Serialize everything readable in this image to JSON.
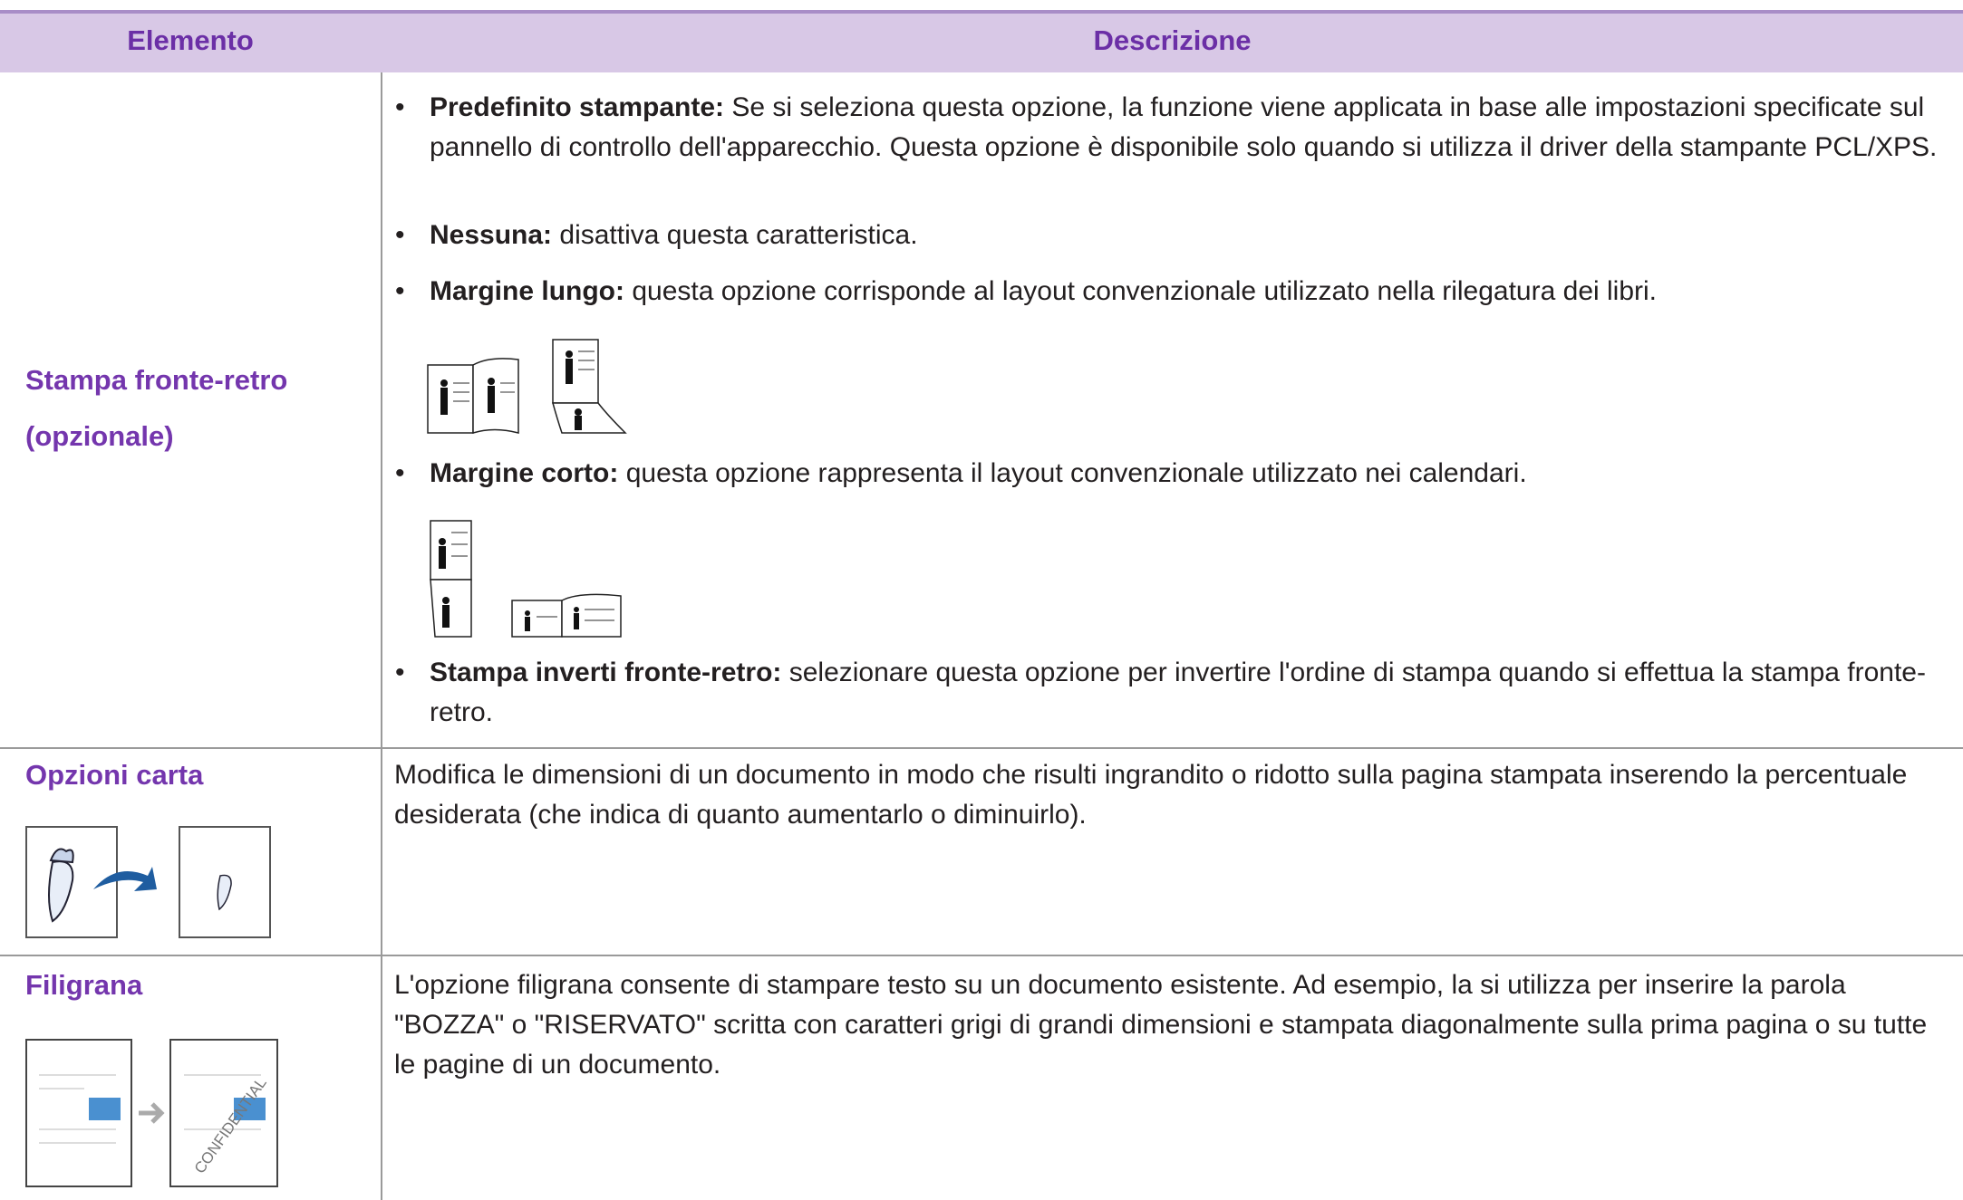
{
  "header": {
    "columns": [
      "Elemento",
      "Descrizione"
    ]
  },
  "rows": [
    {
      "label_lines": [
        "Stampa fronte-retro",
        "(opzionale)"
      ],
      "bullets": [
        {
          "bold": "Predefinito stampante:",
          "text": " Se si seleziona questa opzione, la funzione viene applicata in base alle impostazioni specificate sul pannello di controllo dell'apparecchio. Questa opzione è disponibile solo quando si utilizza il driver della stampante PCL/XPS."
        },
        {
          "bold": "Nessuna:",
          "text": " disattiva questa caratteristica."
        },
        {
          "bold": "Margine lungo:",
          "text": " questa opzione corrisponde al layout convenzionale utilizzato nella rilegatura dei libri."
        },
        {
          "bold": "Margine corto:",
          "text": " questa opzione rappresenta il layout convenzionale utilizzato nei calendari."
        },
        {
          "bold": "Stampa inverti fronte-retro:",
          "text": " selezionare questa opzione per invertire l'ordine di stampa quando si effettua la stampa fronte-retro."
        }
      ]
    },
    {
      "label": "Opzioni carta",
      "text": "Modifica le dimensioni di un documento in modo che risulti ingrandito o ridotto sulla pagina stampata inserendo la percentuale desiderata (che indica di quanto aumentarlo o diminuirlo)."
    },
    {
      "label": "Filigrana",
      "text": "L'opzione filigrana consente di stampare testo su un documento esistente. Ad esempio, la si utilizza per inserire la parola \"BOZZA\" o \"RISERVATO\" scritta con caratteri grigi di grandi dimensioni e stampata diagonalmente sulla prima pagina o su tutte le pagine di un documento.",
      "watermark": "CONFIDENTIAL"
    }
  ]
}
